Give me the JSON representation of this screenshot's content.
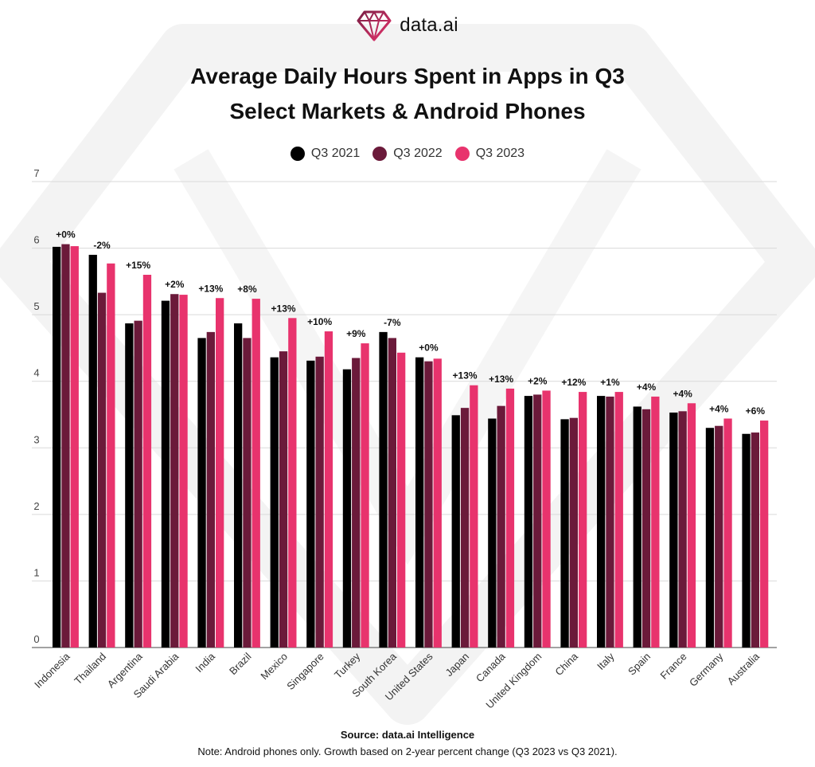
{
  "brand": {
    "logo_text": "data.ai",
    "logo_icon": "diamond-icon"
  },
  "chart_data": {
    "type": "bar",
    "title": [
      "Average Daily Hours Spent in Apps in Q3",
      "Select Markets & Android Phones"
    ],
    "xlabel": "",
    "ylabel": "",
    "ylim": [
      0,
      7
    ],
    "yticks": [
      0,
      1,
      2,
      3,
      4,
      5,
      6,
      7
    ],
    "grid": true,
    "legend_position": "top-center",
    "categories": [
      "Indonesia",
      "Thailand",
      "Argentina",
      "Saudi Arabia",
      "India",
      "Brazil",
      "Mexico",
      "Singapore",
      "Turkey",
      "South Korea",
      "United States",
      "Japan",
      "Canada",
      "United Kingdom",
      "China",
      "Italy",
      "Spain",
      "France",
      "Germany",
      "Australia"
    ],
    "series": [
      {
        "name": "Q3 2021",
        "color": "#000000",
        "values": [
          6.02,
          5.9,
          4.87,
          5.21,
          4.65,
          4.87,
          4.36,
          4.31,
          4.18,
          4.74,
          4.36,
          3.49,
          3.44,
          3.78,
          3.43,
          3.78,
          3.62,
          3.53,
          3.3,
          3.21
        ]
      },
      {
        "name": "Q3 2022",
        "color": "#6b1a3a",
        "values": [
          6.06,
          5.33,
          4.91,
          5.31,
          4.74,
          4.65,
          4.45,
          4.37,
          4.35,
          4.65,
          4.3,
          3.6,
          3.63,
          3.8,
          3.45,
          3.77,
          3.58,
          3.55,
          3.33,
          3.23
        ]
      },
      {
        "name": "Q3 2023",
        "color": "#e8336d",
        "values": [
          6.03,
          5.77,
          5.6,
          5.3,
          5.25,
          5.24,
          4.95,
          4.75,
          4.57,
          4.43,
          4.34,
          3.94,
          3.89,
          3.86,
          3.84,
          3.84,
          3.77,
          3.67,
          3.44,
          3.41
        ]
      }
    ],
    "annotations": [
      "+0%",
      "-2%",
      "+15%",
      "+2%",
      "+13%",
      "+8%",
      "+13%",
      "+10%",
      "+9%",
      "-7%",
      "+0%",
      "+13%",
      "+13%",
      "+2%",
      "+12%",
      "+1%",
      "+4%",
      "+4%",
      "+4%",
      "+6%"
    ]
  },
  "footer": {
    "source": "Source: data.ai Intelligence",
    "note": "Note: Android phones only. Growth based on 2-year percent change (Q3 2023 vs Q3 2021)."
  }
}
